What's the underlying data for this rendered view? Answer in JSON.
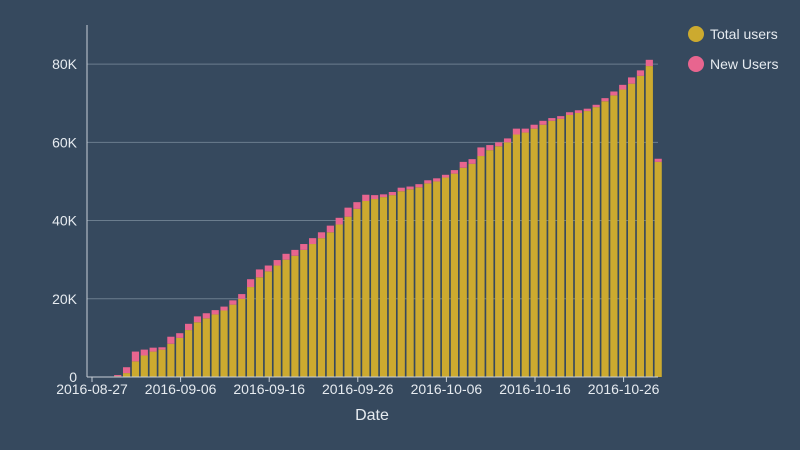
{
  "chart_data": {
    "type": "bar",
    "stacked": true,
    "title": "",
    "xlabel": "Date",
    "ylabel": "",
    "ylim": [
      0,
      90000
    ],
    "grid": true,
    "legend_position": "top-right",
    "y_ticks": [
      0,
      20000,
      40000,
      60000,
      80000
    ],
    "y_tick_labels": [
      "0",
      "20K",
      "40K",
      "60K",
      "80K"
    ],
    "x_tick_labels": [
      "2016-08-27",
      "2016-09-06",
      "2016-09-16",
      "2016-09-26",
      "2016-10-06",
      "2016-10-16",
      "2016-10-26"
    ],
    "x_tick_index": [
      0,
      10,
      20,
      30,
      40,
      50,
      60
    ],
    "categories": [
      "2016-08-27",
      "2016-08-28",
      "2016-08-29",
      "2016-08-30",
      "2016-08-31",
      "2016-09-01",
      "2016-09-02",
      "2016-09-03",
      "2016-09-04",
      "2016-09-05",
      "2016-09-06",
      "2016-09-07",
      "2016-09-08",
      "2016-09-09",
      "2016-09-10",
      "2016-09-11",
      "2016-09-12",
      "2016-09-13",
      "2016-09-14",
      "2016-09-15",
      "2016-09-16",
      "2016-09-17",
      "2016-09-18",
      "2016-09-19",
      "2016-09-20",
      "2016-09-21",
      "2016-09-22",
      "2016-09-23",
      "2016-09-24",
      "2016-09-25",
      "2016-09-26",
      "2016-09-27",
      "2016-09-28",
      "2016-09-29",
      "2016-09-30",
      "2016-10-01",
      "2016-10-02",
      "2016-10-03",
      "2016-10-04",
      "2016-10-05",
      "2016-10-06",
      "2016-10-07",
      "2016-10-08",
      "2016-10-09",
      "2016-10-10",
      "2016-10-11",
      "2016-10-12",
      "2016-10-13",
      "2016-10-14",
      "2016-10-15",
      "2016-10-16",
      "2016-10-17",
      "2016-10-18",
      "2016-10-19",
      "2016-10-20",
      "2016-10-21",
      "2016-10-22",
      "2016-10-23",
      "2016-10-24",
      "2016-10-25",
      "2016-10-26",
      "2016-10-27",
      "2016-10-28",
      "2016-10-29",
      "2016-10-30"
    ],
    "series": [
      {
        "name": "Total users",
        "color": "#ccaa2f",
        "values": [
          0,
          0,
          200,
          1000,
          4000,
          5500,
          6500,
          7000,
          8500,
          10000,
          12000,
          14000,
          15000,
          16000,
          17000,
          18500,
          20000,
          23000,
          25500,
          27000,
          28500,
          30000,
          31000,
          32500,
          34000,
          35500,
          37000,
          39000,
          41000,
          43000,
          45000,
          45500,
          46000,
          46500,
          47500,
          48000,
          48500,
          49500,
          50000,
          51000,
          52000,
          53500,
          54500,
          56500,
          58000,
          59000,
          60000,
          62000,
          62500,
          63500,
          64500,
          65500,
          66000,
          67000,
          67500,
          68000,
          69000,
          70500,
          72000,
          73500,
          75000,
          77000,
          79500,
          55000,
          0
        ]
      },
      {
        "name": "New Users",
        "color": "#e8658f",
        "values": [
          0,
          0,
          300,
          1500,
          2500,
          1500,
          1000,
          600,
          1800,
          1200,
          1600,
          1500,
          1300,
          1100,
          1000,
          1100,
          1200,
          2000,
          2000,
          1500,
          1400,
          1500,
          1500,
          1500,
          1500,
          1500,
          1700,
          1700,
          2300,
          1700,
          1600,
          1000,
          700,
          800,
          900,
          700,
          800,
          800,
          800,
          700,
          900,
          1500,
          1200,
          2200,
          1300,
          1000,
          1000,
          1500,
          1000,
          1000,
          1000,
          700,
          700,
          700,
          700,
          600,
          600,
          800,
          1000,
          1200,
          1600,
          1400,
          1600,
          800,
          0
        ]
      }
    ]
  }
}
